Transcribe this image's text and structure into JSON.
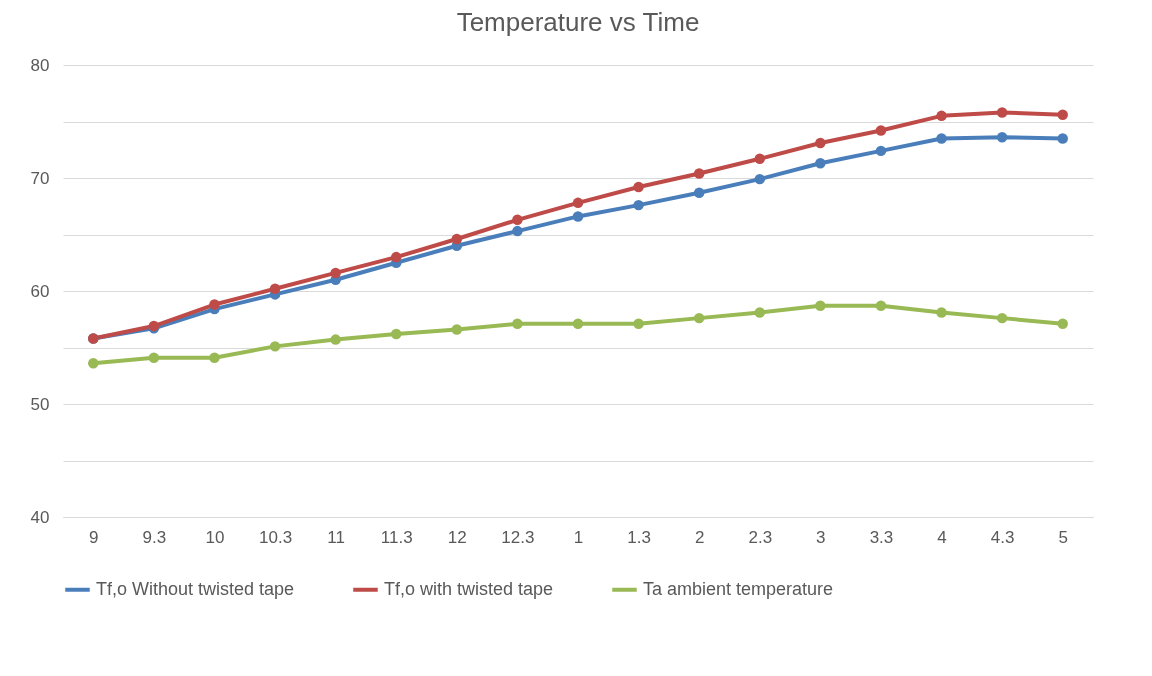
{
  "chart_data": {
    "type": "line",
    "title": "Temperature vs Time",
    "categories": [
      "9",
      "9.3",
      "10",
      "10.3",
      "11",
      "11.3",
      "12",
      "12.3",
      "1",
      "1.3",
      "2",
      "2.3",
      "3",
      "3.3",
      "4",
      "4.3",
      "5"
    ],
    "series": [
      {
        "name": "Tf,o Without twisted tape",
        "color": "#4a7ebb",
        "values": [
          55.8,
          56.7,
          58.4,
          59.7,
          61.0,
          62.5,
          64.0,
          65.3,
          66.6,
          67.6,
          68.7,
          69.9,
          71.3,
          72.4,
          73.5,
          73.6,
          73.5
        ]
      },
      {
        "name": "Tf,o with twisted tape",
        "color": "#be4b48",
        "values": [
          55.8,
          56.9,
          58.8,
          60.2,
          61.6,
          63.0,
          64.6,
          66.3,
          67.8,
          69.2,
          70.4,
          71.7,
          73.1,
          74.2,
          75.5,
          75.8,
          75.6
        ]
      },
      {
        "name": "Ta ambient temperature",
        "color": "#98b954",
        "values": [
          53.6,
          54.1,
          54.1,
          55.1,
          55.7,
          56.2,
          56.6,
          57.1,
          57.1,
          57.1,
          57.6,
          58.1,
          58.7,
          58.7,
          58.1,
          57.6,
          57.1
        ]
      }
    ],
    "ylim": [
      40,
      80
    ],
    "yticks": [
      40,
      {
        "value": 45,
        "label": null
      },
      50,
      {
        "value": 55,
        "label": null
      },
      60,
      {
        "value": 65,
        "label": null
      },
      70,
      {
        "value": 75,
        "label": null
      },
      80
    ],
    "grid": "y",
    "legend": "bottom",
    "marker": "circle",
    "line_style": "solid"
  }
}
